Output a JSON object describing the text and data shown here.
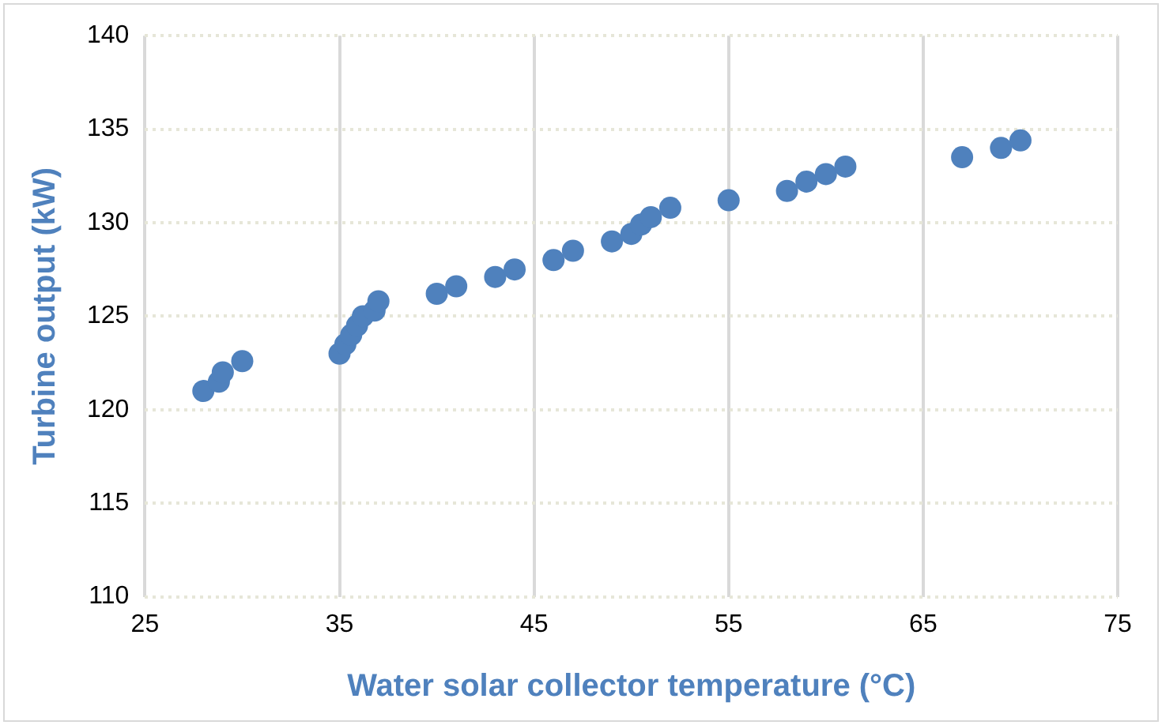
{
  "chart_data": {
    "type": "scatter",
    "xlabel": "Water solar collector temperature (°C)",
    "ylabel": "Turbine output (kW)",
    "x": [
      28,
      28.5,
      28.8,
      29,
      30,
      35,
      35.3,
      35.6,
      35.9,
      36.2,
      36.8,
      37,
      40,
      41,
      43,
      44,
      46,
      47,
      49,
      50,
      50.5,
      51,
      52,
      55,
      58,
      59,
      60,
      61,
      67,
      69,
      70
    ],
    "series": [
      {
        "color": "#4f81bd",
        "values": [
          121,
          null,
          121.5,
          122,
          122.6,
          123,
          123.5,
          124,
          124.5,
          125,
          125.3,
          125.8,
          126.2,
          126.6,
          127.1,
          127.5,
          128,
          128.5,
          129,
          129.4,
          129.9,
          130.3,
          130.8,
          131.2,
          131.7,
          132.2,
          132.6,
          133,
          133.5,
          134,
          134.4
        ]
      }
    ],
    "xlim": [
      25,
      75
    ],
    "xticks": [
      25,
      35,
      45,
      55,
      65,
      75
    ],
    "ylim": [
      110,
      140
    ],
    "yticks": [
      110,
      115,
      120,
      125,
      130,
      135,
      140
    ],
    "grid": true,
    "marker": "circle",
    "legend": false
  }
}
